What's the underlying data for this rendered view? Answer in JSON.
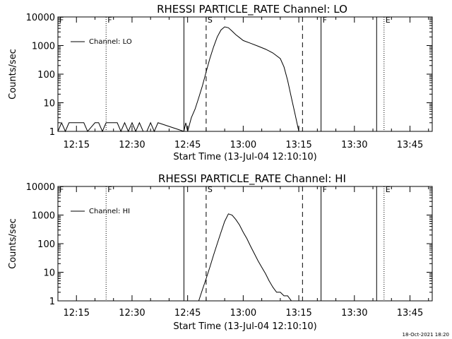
{
  "footer": {
    "timestamp": "18-Oct-2021 18:20"
  },
  "chart_data": [
    {
      "type": "line",
      "title": "RHESSI PARTICLE_RATE Channel: LO",
      "xlabel": "Start Time (13-Jul-04 12:10:10)",
      "ylabel": "Counts/sec",
      "xlim": [
        "12:10",
        "13:51"
      ],
      "ylim": [
        1,
        10000
      ],
      "yscale": "log",
      "xticks": [
        "12:15",
        "12:30",
        "12:45",
        "13:00",
        "13:15",
        "13:30",
        "13:45"
      ],
      "yticks": [
        "1",
        "10",
        "100",
        "1000",
        "10000"
      ],
      "legend": {
        "position": "top-left",
        "entries": [
          "Channel: LO"
        ]
      },
      "series": [
        {
          "name": "Channel: LO",
          "x": [
            "12:10",
            "12:11",
            "12:12",
            "12:13",
            "12:15",
            "12:17",
            "12:18",
            "12:20",
            "12:21",
            "12:22",
            "12:23",
            "12:25",
            "12:26",
            "12:27",
            "12:28",
            "12:29",
            "12:30",
            "12:31",
            "12:32",
            "12:33",
            "12:34",
            "12:35",
            "12:36",
            "12:37",
            "12:44",
            "12:44.5",
            "12:45",
            "12:46",
            "12:47",
            "12:48",
            "12:49",
            "12:50",
            "12:51",
            "12:52",
            "12:53",
            "12:54",
            "12:55",
            "12:56",
            "12:57",
            "12:58",
            "12:59",
            "13:00",
            "13:02",
            "13:04",
            "13:06",
            "13:08",
            "13:10",
            "13:11",
            "13:12",
            "13:13",
            "13:14",
            "13:15"
          ],
          "y": [
            1,
            2,
            1,
            2,
            2,
            2,
            1,
            2,
            2,
            1,
            2,
            2,
            2,
            1,
            2,
            1,
            2,
            1,
            2,
            1,
            1,
            2,
            1,
            2,
            1,
            2,
            1,
            3,
            6,
            15,
            40,
            120,
            350,
            900,
            2000,
            3500,
            4500,
            4200,
            3200,
            2400,
            1900,
            1500,
            1200,
            950,
            750,
            550,
            350,
            180,
            60,
            15,
            4,
            1
          ]
        }
      ],
      "flags": [
        {
          "label": "F",
          "time": "12:10",
          "style": "dotted"
        },
        {
          "label": "F",
          "time": "12:23",
          "style": "dotted"
        },
        {
          "label": "",
          "time": "12:44",
          "style": "solid"
        },
        {
          "label": "S",
          "time": "12:50",
          "style": "dashed"
        },
        {
          "label": "",
          "time": "13:16",
          "style": "dashed"
        },
        {
          "label": "F",
          "time": "13:21",
          "style": "solid"
        },
        {
          "label": "",
          "time": "13:36",
          "style": "solid"
        },
        {
          "label": "E",
          "time": "13:38",
          "style": "dotted"
        },
        {
          "label": "",
          "time": "13:51",
          "style": "dotted"
        }
      ]
    },
    {
      "type": "line",
      "title": "RHESSI PARTICLE_RATE Channel: HI",
      "xlabel": "Start Time (13-Jul-04 12:10:10)",
      "ylabel": "Counts/sec",
      "xlim": [
        "12:10",
        "13:51"
      ],
      "ylim": [
        1,
        10000
      ],
      "yscale": "log",
      "xticks": [
        "12:15",
        "12:30",
        "12:45",
        "13:00",
        "13:15",
        "13:30",
        "13:45"
      ],
      "yticks": [
        "1",
        "10",
        "100",
        "1000",
        "10000"
      ],
      "legend": {
        "position": "top-left",
        "entries": [
          "Channel: HI"
        ]
      },
      "series": [
        {
          "name": "Channel: HI",
          "x": [
            "12:48",
            "12:49",
            "12:50",
            "12:51",
            "12:52",
            "12:53",
            "12:54",
            "12:55",
            "12:56",
            "12:57",
            "12:58",
            "12:59",
            "13:00",
            "13:01",
            "13:02",
            "13:03",
            "13:04",
            "13:05",
            "13:06",
            "13:07",
            "13:08",
            "13:09",
            "13:10",
            "13:11",
            "13:12",
            "13:13"
          ],
          "y": [
            1,
            2.5,
            6,
            15,
            40,
            100,
            250,
            600,
            1100,
            1000,
            700,
            450,
            250,
            150,
            80,
            45,
            25,
            15,
            9,
            5,
            3,
            2,
            2,
            1.5,
            1.5,
            1
          ]
        }
      ],
      "flags": [
        {
          "label": "F",
          "time": "12:10",
          "style": "dotted"
        },
        {
          "label": "F",
          "time": "12:23",
          "style": "dotted"
        },
        {
          "label": "",
          "time": "12:44",
          "style": "solid"
        },
        {
          "label": "S",
          "time": "12:50",
          "style": "dashed"
        },
        {
          "label": "",
          "time": "13:16",
          "style": "dashed"
        },
        {
          "label": "F",
          "time": "13:21",
          "style": "solid"
        },
        {
          "label": "",
          "time": "13:36",
          "style": "solid"
        },
        {
          "label": "E",
          "time": "13:38",
          "style": "dotted"
        },
        {
          "label": "",
          "time": "13:51",
          "style": "dotted"
        }
      ]
    }
  ]
}
